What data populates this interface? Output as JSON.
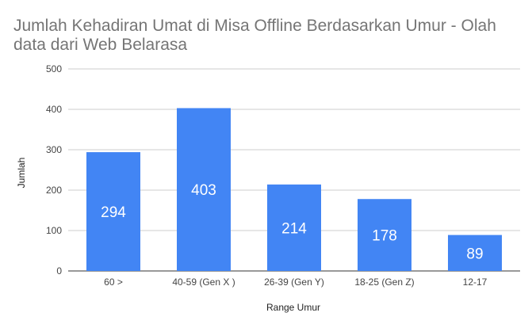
{
  "chart_data": {
    "type": "bar",
    "title": "Jumlah Kehadiran Umat di Misa Offline Berdasarkan Umur - Olah data dari Web Belarasa",
    "categories": [
      "60 >",
      "40-59 (Gen X )",
      "26-39 (Gen Y)",
      "18-25 (Gen Z)",
      "12-17"
    ],
    "values": [
      294,
      403,
      214,
      178,
      89
    ],
    "xlabel": "Range Umur",
    "ylabel": "Jumlah",
    "ylim": [
      0,
      500
    ],
    "yticks": [
      0,
      100,
      200,
      300,
      400,
      500
    ],
    "grid": true,
    "data_labels": true,
    "bar_color": "#4285f4"
  }
}
